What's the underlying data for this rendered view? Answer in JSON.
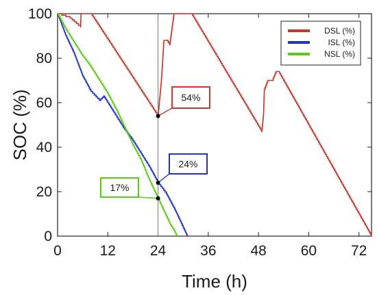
{
  "chart_data": {
    "type": "line",
    "xlabel": "Time (h)",
    "ylabel": "SOC (%)",
    "xlim": [
      0,
      75
    ],
    "ylim": [
      0,
      100
    ],
    "xticks": [
      0,
      12,
      24,
      36,
      48,
      60,
      72
    ],
    "yticks": [
      0,
      20,
      40,
      60,
      80,
      100
    ],
    "grid": false,
    "legend_position": "top-right",
    "reference_line_x": 24,
    "series": [
      {
        "name": "DSL (%)",
        "color": "#c0392b",
        "x": [
          0,
          3,
          5.5,
          5.6,
          6.2,
          8,
          24,
          24.8,
          25.4,
          26.2,
          26.8,
          27.8,
          28,
          28.8,
          29.5,
          32,
          48.8,
          49.2,
          49.4,
          50.2,
          51.5,
          52.2,
          52.8,
          75
        ],
        "y": [
          100,
          98,
          94,
          100,
          100,
          100,
          54,
          70,
          88,
          88,
          86,
          100,
          100,
          100,
          100,
          100,
          47,
          55,
          66,
          70,
          71,
          74,
          74,
          0
        ]
      },
      {
        "name": "ISL (%)",
        "color": "#1f33c8",
        "x": [
          0,
          2,
          4,
          6,
          8,
          10,
          11,
          12,
          14,
          16,
          18,
          20,
          22,
          24,
          26,
          28,
          29,
          30,
          30.5,
          31
        ],
        "y": [
          100,
          90,
          82,
          72,
          65,
          61,
          63,
          60,
          54,
          48,
          43,
          37,
          31,
          24,
          19,
          12,
          8,
          4,
          2,
          0
        ]
      },
      {
        "name": "NSL (%)",
        "color": "#55cc11",
        "x": [
          0,
          2,
          4,
          6,
          8,
          10,
          12,
          14,
          16,
          18,
          20,
          22,
          24,
          26,
          27,
          28,
          28.5
        ],
        "y": [
          100,
          93,
          87,
          81,
          76,
          70,
          64,
          57,
          49,
          41,
          34,
          25,
          17,
          9,
          5,
          2,
          0
        ]
      }
    ],
    "annotations": [
      {
        "text": "54%",
        "x": 24,
        "y": 54,
        "color": "#c0392b"
      },
      {
        "text": "24%",
        "x": 24,
        "y": 24,
        "color": "#1f33c8"
      },
      {
        "text": "17%",
        "x": 24,
        "y": 17,
        "color": "#55cc11"
      }
    ]
  }
}
